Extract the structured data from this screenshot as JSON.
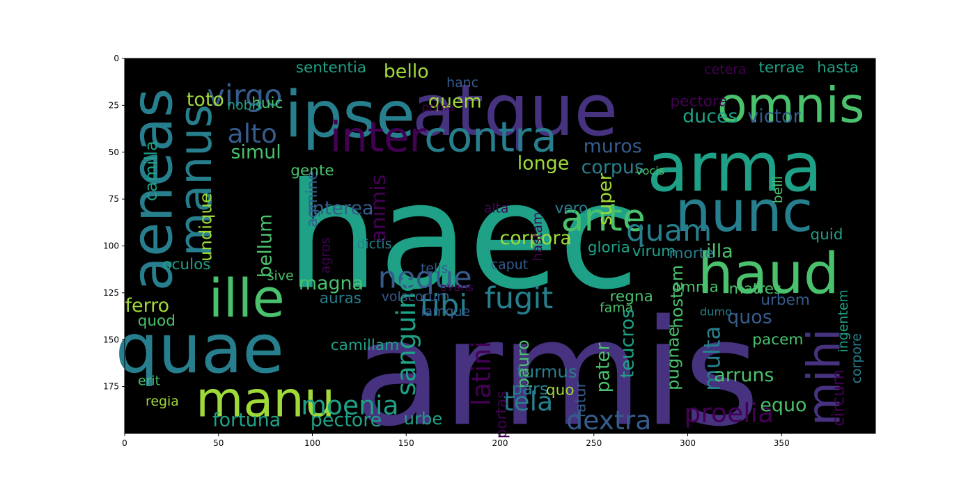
{
  "chart_data": {
    "type": "wordcloud",
    "image_size": [
      400,
      200
    ],
    "xlim": [
      0,
      400
    ],
    "ylim": [
      200,
      0
    ],
    "y_inverted": true,
    "xticks": [
      0,
      50,
      100,
      150,
      200,
      250,
      300,
      350
    ],
    "yticks": [
      0,
      25,
      50,
      75,
      100,
      125,
      150,
      175
    ],
    "background": "#000000",
    "palette": [
      "#46327e",
      "#365c8d",
      "#277f8e",
      "#1fa187",
      "#4ac16d",
      "#a0da39",
      "#fde725",
      "#440154"
    ],
    "words": [
      {
        "text": "haec",
        "x": 180,
        "y": 95,
        "size": 78,
        "color": "#1fa187"
      },
      {
        "text": "armis",
        "x": 230,
        "y": 168,
        "size": 78,
        "color": "#46327e"
      },
      {
        "text": "atque",
        "x": 208,
        "y": 28,
        "size": 38,
        "color": "#46327e"
      },
      {
        "text": "arma",
        "x": 325,
        "y": 58,
        "size": 36,
        "color": "#1fa187"
      },
      {
        "text": "nunc",
        "x": 330,
        "y": 82,
        "size": 30,
        "color": "#277f8e"
      },
      {
        "text": "ipse",
        "x": 120,
        "y": 30,
        "size": 34,
        "color": "#277f8e"
      },
      {
        "text": "omnis",
        "x": 355,
        "y": 25,
        "size": 26,
        "color": "#4ac16d"
      },
      {
        "text": "haud",
        "x": 343,
        "y": 115,
        "size": 30,
        "color": "#4ac16d"
      },
      {
        "text": "aeneas",
        "x": 15,
        "y": 70,
        "size": 30,
        "color": "#277f8e",
        "rotate": -90
      },
      {
        "text": "manus",
        "x": 38,
        "y": 65,
        "size": 24,
        "color": "#277f8e",
        "rotate": -90
      },
      {
        "text": "quae",
        "x": 40,
        "y": 155,
        "size": 36,
        "color": "#277f8e"
      },
      {
        "text": "ille",
        "x": 65,
        "y": 128,
        "size": 28,
        "color": "#4ac16d"
      },
      {
        "text": "manu",
        "x": 75,
        "y": 182,
        "size": 26,
        "color": "#a0da39"
      },
      {
        "text": "mihi",
        "x": 373,
        "y": 170,
        "size": 24,
        "color": "#46327e",
        "rotate": -90
      },
      {
        "text": "inter",
        "x": 135,
        "y": 42,
        "size": 22,
        "color": "#440154"
      },
      {
        "text": "contra",
        "x": 195,
        "y": 42,
        "size": 22,
        "color": "#277f8e"
      },
      {
        "text": "ante",
        "x": 255,
        "y": 85,
        "size": 20,
        "color": "#4ac16d"
      },
      {
        "text": "quam",
        "x": 290,
        "y": 92,
        "size": 16,
        "color": "#277f8e"
      },
      {
        "text": "virgo",
        "x": 64,
        "y": 20,
        "size": 16,
        "color": "#365c8d"
      },
      {
        "text": "alto",
        "x": 68,
        "y": 40,
        "size": 14,
        "color": "#365c8d"
      },
      {
        "text": "neque",
        "x": 160,
        "y": 117,
        "size": 16,
        "color": "#365c8d"
      },
      {
        "text": "tibi",
        "x": 170,
        "y": 132,
        "size": 16,
        "color": "#277f8e"
      },
      {
        "text": "fugit",
        "x": 210,
        "y": 128,
        "size": 16,
        "color": "#277f8e"
      },
      {
        "text": "sanguine",
        "x": 150,
        "y": 148,
        "size": 14,
        "color": "#1fa187",
        "rotate": -90
      },
      {
        "text": "latini",
        "x": 190,
        "y": 168,
        "size": 14,
        "color": "#440154",
        "rotate": -90
      },
      {
        "text": "moenia",
        "x": 120,
        "y": 185,
        "size": 14,
        "color": "#1fa187"
      },
      {
        "text": "tela",
        "x": 215,
        "y": 183,
        "size": 14,
        "color": "#277f8e"
      },
      {
        "text": "dextra",
        "x": 258,
        "y": 193,
        "size": 14,
        "color": "#365c8d"
      },
      {
        "text": "proelia",
        "x": 322,
        "y": 189,
        "size": 14,
        "color": "#440154"
      },
      {
        "text": "multa",
        "x": 313,
        "y": 160,
        "size": 12,
        "color": "#277f8e",
        "rotate": -90
      },
      {
        "text": "fortuna",
        "x": 65,
        "y": 193,
        "size": 10,
        "color": "#1fa187"
      },
      {
        "text": "pectore",
        "x": 118,
        "y": 193,
        "size": 10,
        "color": "#1fa187"
      },
      {
        "text": "bello",
        "x": 150,
        "y": 7,
        "size": 10,
        "color": "#a0da39"
      },
      {
        "text": "toto",
        "x": 43,
        "y": 22,
        "size": 10,
        "color": "#a0da39"
      },
      {
        "text": "muros",
        "x": 260,
        "y": 47,
        "size": 10,
        "color": "#365c8d"
      },
      {
        "text": "longe",
        "x": 223,
        "y": 56,
        "size": 10,
        "color": "#a0da39"
      },
      {
        "text": "corpus",
        "x": 260,
        "y": 58,
        "size": 10,
        "color": "#277f8e"
      },
      {
        "text": "corpora",
        "x": 219,
        "y": 96,
        "size": 10,
        "color": "#a0da39"
      },
      {
        "text": "duces",
        "x": 312,
        "y": 31,
        "size": 10,
        "color": "#1fa187"
      },
      {
        "text": "victor",
        "x": 346,
        "y": 31,
        "size": 10,
        "color": "#365c8d"
      },
      {
        "text": "illa",
        "x": 317,
        "y": 103,
        "size": 10,
        "color": "#4ac16d"
      },
      {
        "text": "quid",
        "x": 374,
        "y": 94,
        "size": 8,
        "color": "#1fa187"
      },
      {
        "text": "super",
        "x": 256,
        "y": 75,
        "size": 10,
        "color": "#a0da39",
        "rotate": -90
      },
      {
        "text": "simul",
        "x": 70,
        "y": 50,
        "size": 10,
        "color": "#4ac16d"
      },
      {
        "text": "bellum",
        "x": 75,
        "y": 100,
        "size": 10,
        "color": "#4ac16d",
        "rotate": -90
      },
      {
        "text": "ferro",
        "x": 12,
        "y": 132,
        "size": 10,
        "color": "#a0da39"
      },
      {
        "text": "magna",
        "x": 110,
        "y": 120,
        "size": 10,
        "color": "#4ac16d"
      },
      {
        "text": "quem",
        "x": 176,
        "y": 23,
        "size": 10,
        "color": "#a0da39"
      },
      {
        "text": "undique",
        "x": 43,
        "y": 90,
        "size": 9,
        "color": "#a0da39",
        "rotate": -90
      },
      {
        "text": "camilla",
        "x": 14,
        "y": 60,
        "size": 9,
        "color": "#1fa187",
        "rotate": -90
      },
      {
        "text": "animis",
        "x": 135,
        "y": 80,
        "size": 11,
        "color": "#440154",
        "rotate": -90
      },
      {
        "text": "interea",
        "x": 115,
        "y": 80,
        "size": 10,
        "color": "#365c8d"
      },
      {
        "text": "vero",
        "x": 238,
        "y": 80,
        "size": 8,
        "color": "#277f8e"
      },
      {
        "text": "gloria",
        "x": 258,
        "y": 101,
        "size": 8,
        "color": "#1fa187"
      },
      {
        "text": "virum",
        "x": 282,
        "y": 103,
        "size": 8,
        "color": "#1fa187"
      },
      {
        "text": "morte",
        "x": 302,
        "y": 104,
        "size": 8,
        "color": "#277f8e"
      },
      {
        "text": "hostem",
        "x": 294,
        "y": 127,
        "size": 9,
        "color": "#4ac16d",
        "rotate": -90
      },
      {
        "text": "urbem",
        "x": 352,
        "y": 129,
        "size": 8,
        "color": "#365c8d"
      },
      {
        "text": "quos",
        "x": 333,
        "y": 138,
        "size": 10,
        "color": "#365c8d"
      },
      {
        "text": "pacem",
        "x": 348,
        "y": 150,
        "size": 8,
        "color": "#4ac16d"
      },
      {
        "text": "omnia",
        "x": 304,
        "y": 122,
        "size": 8,
        "color": "#4ac16d"
      },
      {
        "text": "matres",
        "x": 336,
        "y": 123,
        "size": 8,
        "color": "#4ac16d"
      },
      {
        "text": "regna",
        "x": 270,
        "y": 127,
        "size": 8,
        "color": "#4ac16d"
      },
      {
        "text": "fama",
        "x": 262,
        "y": 133,
        "size": 7,
        "color": "#4ac16d"
      },
      {
        "text": "teucros",
        "x": 268,
        "y": 152,
        "size": 10,
        "color": "#1fa187",
        "rotate": -90
      },
      {
        "text": "pater",
        "x": 255,
        "y": 165,
        "size": 10,
        "color": "#4ac16d",
        "rotate": -90
      },
      {
        "text": "pugnae",
        "x": 292,
        "y": 160,
        "size": 9,
        "color": "#4ac16d",
        "rotate": -90
      },
      {
        "text": "arruns",
        "x": 330,
        "y": 169,
        "size": 10,
        "color": "#4ac16d"
      },
      {
        "text": "equo",
        "x": 351,
        "y": 185,
        "size": 10,
        "color": "#4ac16d"
      },
      {
        "text": "circum",
        "x": 380,
        "y": 181,
        "size": 9,
        "color": "#440154",
        "rotate": -90
      },
      {
        "text": "turmus",
        "x": 225,
        "y": 167,
        "size": 9,
        "color": "#277f8e"
      },
      {
        "text": "pauro",
        "x": 212,
        "y": 163,
        "size": 9,
        "color": "#4ac16d",
        "rotate": -90
      },
      {
        "text": "pars",
        "x": 216,
        "y": 176,
        "size": 9,
        "color": "#277f8e"
      },
      {
        "text": "fatur",
        "x": 243,
        "y": 182,
        "size": 8,
        "color": "#365c8d",
        "rotate": -90
      },
      {
        "text": "urbe",
        "x": 159,
        "y": 192,
        "size": 9,
        "color": "#1fa187"
      },
      {
        "text": "portas",
        "x": 201,
        "y": 190,
        "size": 8,
        "color": "#440154",
        "rotate": -90
      },
      {
        "text": "camillam",
        "x": 128,
        "y": 153,
        "size": 8,
        "color": "#1fa187"
      },
      {
        "text": "oculos",
        "x": 33,
        "y": 110,
        "size": 8,
        "color": "#1fa187"
      },
      {
        "text": "auras",
        "x": 115,
        "y": 128,
        "size": 8,
        "color": "#277f8e"
      },
      {
        "text": "volscorum",
        "x": 155,
        "y": 127,
        "size": 7,
        "color": "#365c8d"
      },
      {
        "text": "iamque",
        "x": 171,
        "y": 135,
        "size": 7,
        "color": "#365c8d"
      },
      {
        "text": "telis",
        "x": 165,
        "y": 112,
        "size": 7,
        "color": "#365c8d"
      },
      {
        "text": "dictis",
        "x": 133,
        "y": 99,
        "size": 7,
        "color": "#277f8e"
      },
      {
        "text": "agmine",
        "x": 100,
        "y": 75,
        "size": 8,
        "color": "#365c8d",
        "rotate": -90
      },
      {
        "text": "gente",
        "x": 100,
        "y": 60,
        "size": 8,
        "color": "#4ac16d"
      },
      {
        "text": "huic",
        "x": 76,
        "y": 24,
        "size": 8,
        "color": "#4ac16d"
      },
      {
        "text": "nobis",
        "x": 64,
        "y": 25,
        "size": 7,
        "color": "#1fa187"
      },
      {
        "text": "sententia",
        "x": 110,
        "y": 5,
        "size": 8,
        "color": "#1fa187"
      },
      {
        "text": "hanc",
        "x": 180,
        "y": 13,
        "size": 7,
        "color": "#365c8d"
      },
      {
        "text": "caput",
        "x": 205,
        "y": 110,
        "size": 7,
        "color": "#365c8d"
      },
      {
        "text": "hastam",
        "x": 220,
        "y": 95,
        "size": 7,
        "color": "#440154",
        "rotate": -90
      },
      {
        "text": "alta",
        "x": 198,
        "y": 80,
        "size": 7,
        "color": "#440154"
      },
      {
        "text": "hasta",
        "x": 380,
        "y": 5,
        "size": 8,
        "color": "#1fa187"
      },
      {
        "text": "terrae",
        "x": 350,
        "y": 5,
        "size": 8,
        "color": "#1fa187"
      },
      {
        "text": "cetera",
        "x": 320,
        "y": 6,
        "size": 7,
        "color": "#440154"
      },
      {
        "text": "pectora",
        "x": 306,
        "y": 23,
        "size": 8,
        "color": "#440154"
      },
      {
        "text": "belli",
        "x": 348,
        "y": 70,
        "size": 7,
        "color": "#4ac16d",
        "rotate": -90
      },
      {
        "text": "quo",
        "x": 232,
        "y": 177,
        "size": 8,
        "color": "#a0da39"
      },
      {
        "text": "regia",
        "x": 20,
        "y": 183,
        "size": 7,
        "color": "#a0da39"
      },
      {
        "text": "erit",
        "x": 13,
        "y": 172,
        "size": 7,
        "color": "#4ac16d"
      },
      {
        "text": "quod",
        "x": 17,
        "y": 140,
        "size": 8,
        "color": "#4ac16d"
      },
      {
        "text": "ingentem",
        "x": 383,
        "y": 140,
        "size": 7,
        "color": "#1fa187",
        "rotate": -90
      },
      {
        "text": "corpore",
        "x": 390,
        "y": 160,
        "size": 7,
        "color": "#277f8e",
        "rotate": -90
      },
      {
        "text": "agros",
        "x": 107,
        "y": 105,
        "size": 7,
        "color": "#440154",
        "rotate": -90
      },
      {
        "text": "sive",
        "x": 83,
        "y": 116,
        "size": 7,
        "color": "#4ac16d"
      },
      {
        "text": "prima",
        "x": 167,
        "y": 26,
        "size": 6,
        "color": "#440154"
      },
      {
        "text": "ovans",
        "x": 177,
        "y": 122,
        "size": 6,
        "color": "#440154"
      },
      {
        "text": "dumo",
        "x": 315,
        "y": 135,
        "size": 6,
        "color": "#277f8e"
      },
      {
        "text": "vocis",
        "x": 280,
        "y": 60,
        "size": 6,
        "color": "#4ac16d"
      }
    ]
  }
}
